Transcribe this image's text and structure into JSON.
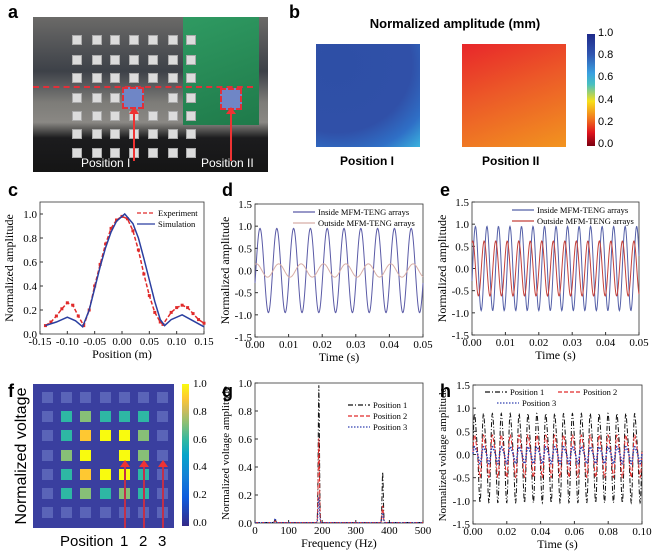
{
  "panel_labels": [
    "a",
    "b",
    "c",
    "d",
    "e",
    "f",
    "g",
    "h"
  ],
  "panel_a": {
    "labels": [
      "Position I",
      "Position II"
    ]
  },
  "colors": {
    "highlight": "#e0303a",
    "pcb": "#2f9a62"
  },
  "chart_data": [
    {
      "panel": "b",
      "type": "heatmap",
      "title": "Normalized amplitude (mm)",
      "maps": [
        {
          "label": "Position I",
          "description_value_range": [
            0.6,
            0.9
          ]
        },
        {
          "label": "Position II",
          "description_value_range": [
            0.1,
            0.25
          ]
        }
      ],
      "colorbar": {
        "ticks": [
          "1.0",
          "0.8",
          "0.6",
          "0.4",
          "0.2",
          "0.0"
        ],
        "range": [
          0,
          1
        ],
        "colormap": "jet-reversed"
      }
    },
    {
      "panel": "c",
      "type": "line",
      "xlabel": "Position (m)",
      "ylabel": "Normalized amplitude",
      "xlim": [
        -0.15,
        0.15
      ],
      "ylim": [
        0,
        1.1
      ],
      "xticks": [
        "-0.15",
        "-0.10",
        "-0.05",
        "0.00",
        "0.05",
        "0.10",
        "0.15"
      ],
      "yticks": [
        "0.0",
        "0.2",
        "0.4",
        "0.6",
        "0.8",
        "1.0"
      ],
      "legend": "top-right",
      "series": [
        {
          "name": "Experiment",
          "color": "#e02a2a",
          "style": "dashed-square",
          "x": [
            -0.14,
            -0.13,
            -0.12,
            -0.11,
            -0.1,
            -0.09,
            -0.08,
            -0.07,
            -0.06,
            -0.05,
            -0.04,
            -0.03,
            -0.02,
            -0.01,
            0.0,
            0.01,
            0.02,
            0.03,
            0.04,
            0.05,
            0.06,
            0.07,
            0.075,
            0.09,
            0.1,
            0.11,
            0.12,
            0.13,
            0.14,
            0.15
          ],
          "y": [
            0.07,
            0.1,
            0.15,
            0.21,
            0.26,
            0.24,
            0.15,
            0.07,
            0.2,
            0.4,
            0.58,
            0.75,
            0.88,
            0.95,
            0.98,
            0.96,
            0.86,
            0.7,
            0.5,
            0.32,
            0.18,
            0.1,
            0.08,
            0.18,
            0.22,
            0.24,
            0.22,
            0.17,
            0.12,
            0.09
          ]
        },
        {
          "name": "Simulation",
          "color": "#2a3fa0",
          "style": "solid",
          "x": [
            -0.14,
            -0.12,
            -0.1,
            -0.085,
            -0.072,
            -0.06,
            -0.05,
            -0.04,
            -0.03,
            -0.02,
            -0.01,
            0.005,
            0.02,
            0.03,
            0.04,
            0.05,
            0.06,
            0.07,
            0.078,
            0.09,
            0.11,
            0.13,
            0.15
          ],
          "y": [
            0.07,
            0.1,
            0.14,
            0.11,
            0.06,
            0.2,
            0.38,
            0.56,
            0.72,
            0.85,
            0.94,
            1.0,
            0.92,
            0.8,
            0.63,
            0.45,
            0.27,
            0.12,
            0.07,
            0.12,
            0.16,
            0.11,
            0.06
          ]
        }
      ]
    },
    {
      "panel": "d",
      "type": "line",
      "xlabel": "Time (s)",
      "ylabel": "Normalized amplitude",
      "xlim": [
        0,
        0.05
      ],
      "ylim": [
        -1.5,
        1.5
      ],
      "xticks": [
        "0.00",
        "0.01",
        "0.02",
        "0.03",
        "0.04",
        "0.05"
      ],
      "yticks": [
        "-1.5",
        "-1.0",
        "-0.5",
        "0.0",
        "0.5",
        "1.0",
        "1.5"
      ],
      "legend": "top",
      "series": [
        {
          "name": "Inside MFM-TENG arrays",
          "color": "#5a5aa6",
          "amplitude": 0.95,
          "frequency_hz": 200
        },
        {
          "name": "Outside MFM-TENG arrays",
          "color": "#d8aea6",
          "amplitude": 0.15,
          "frequency_hz": 150
        }
      ]
    },
    {
      "panel": "e",
      "type": "line",
      "xlabel": "Time (s)",
      "ylabel": "Normalized amplitude",
      "xlim": [
        0,
        0.05
      ],
      "ylim": [
        -1.5,
        1.5
      ],
      "xticks": [
        "0.00",
        "0.01",
        "0.02",
        "0.03",
        "0.04",
        "0.05"
      ],
      "yticks": [
        "-1.5",
        "-1.0",
        "-0.5",
        "0.0",
        "0.5",
        "1.0",
        "1.5"
      ],
      "legend": "top",
      "series": [
        {
          "name": "Inside MFM-TENG arrays",
          "color": "#5560a8",
          "amplitude": 0.95,
          "frequency_hz": 290
        },
        {
          "name": "Outside MFM-TENG arrays",
          "color": "#c4403a",
          "amplitude": 0.62,
          "frequency_hz": 290
        }
      ]
    },
    {
      "panel": "f",
      "type": "heatmap",
      "ylabel": "Normalized voltage",
      "xlabel": "Position",
      "position_markers": [
        "1",
        "2",
        "3"
      ],
      "values": [
        [
          0.1,
          0.1,
          0.1,
          0.1,
          0.1,
          0.1,
          0.1
        ],
        [
          0.1,
          0.5,
          0.6,
          0.5,
          0.5,
          0.5,
          0.1
        ],
        [
          0.1,
          0.5,
          0.9,
          1.0,
          1.0,
          0.6,
          0.1
        ],
        [
          0.1,
          0.6,
          1.0,
          null,
          1.0,
          0.6,
          0.15
        ],
        [
          0.1,
          0.5,
          0.9,
          1.0,
          0.95,
          0.5,
          0.1
        ],
        [
          0.1,
          0.5,
          0.6,
          0.5,
          0.6,
          0.5,
          0.1
        ],
        [
          0.1,
          0.1,
          0.1,
          0.1,
          0.1,
          0.1,
          0.1
        ]
      ],
      "colorbar": {
        "ticks": [
          "1.0",
          "0.8",
          "0.6",
          "0.4",
          "0.2",
          "0.0"
        ],
        "range": [
          0,
          1
        ],
        "colormap": "parula"
      }
    },
    {
      "panel": "g",
      "type": "line",
      "xlabel": "Frequency (Hz)",
      "ylabel": "Normalized voltage amplitude",
      "xlim": [
        0,
        500
      ],
      "ylim": [
        0,
        1.0
      ],
      "xticks": [
        "0",
        "100",
        "200",
        "300",
        "400",
        "500"
      ],
      "yticks": [
        "0.0",
        "0.2",
        "0.4",
        "0.6",
        "0.8",
        "1.0"
      ],
      "legend": "top-right",
      "series": [
        {
          "name": "Position 1",
          "color": "#111111",
          "style": "dash-dot",
          "peaks_hz": [
            60,
            190,
            380
          ],
          "peaks": [
            0.02,
            0.98,
            0.36
          ]
        },
        {
          "name": "Position 2",
          "color": "#e02a2a",
          "style": "dashed",
          "peaks_hz": [
            60,
            190,
            380
          ],
          "peaks": [
            0.01,
            0.6,
            0.12
          ]
        },
        {
          "name": "Position 3",
          "color": "#3040b0",
          "style": "dotted",
          "peaks_hz": [
            60,
            190,
            380
          ],
          "peaks": [
            0.03,
            0.18,
            0.07
          ]
        }
      ]
    },
    {
      "panel": "h",
      "type": "line",
      "xlabel": "Time (s)",
      "ylabel": "Normalized voltage amplitude",
      "xlim": [
        0,
        0.1
      ],
      "ylim": [
        -1.5,
        1.5
      ],
      "xticks": [
        "0.00",
        "0.02",
        "0.04",
        "0.06",
        "0.08",
        "0.10"
      ],
      "yticks": [
        "-1.5",
        "-1.0",
        "-0.5",
        "0.0",
        "0.5",
        "1.0",
        "1.5"
      ],
      "legend": "top",
      "series": [
        {
          "name": "Position 1",
          "color": "#111111",
          "style": "dash-dot",
          "amplitude": 1.05,
          "frequency_hz": 190
        },
        {
          "name": "Position 2",
          "color": "#e02a2a",
          "style": "dashed",
          "amplitude": 0.5,
          "frequency_hz": 190
        },
        {
          "name": "Position 3",
          "color": "#3040b0",
          "style": "dotted",
          "amplitude": 0.2,
          "frequency_hz": 190
        }
      ]
    }
  ]
}
